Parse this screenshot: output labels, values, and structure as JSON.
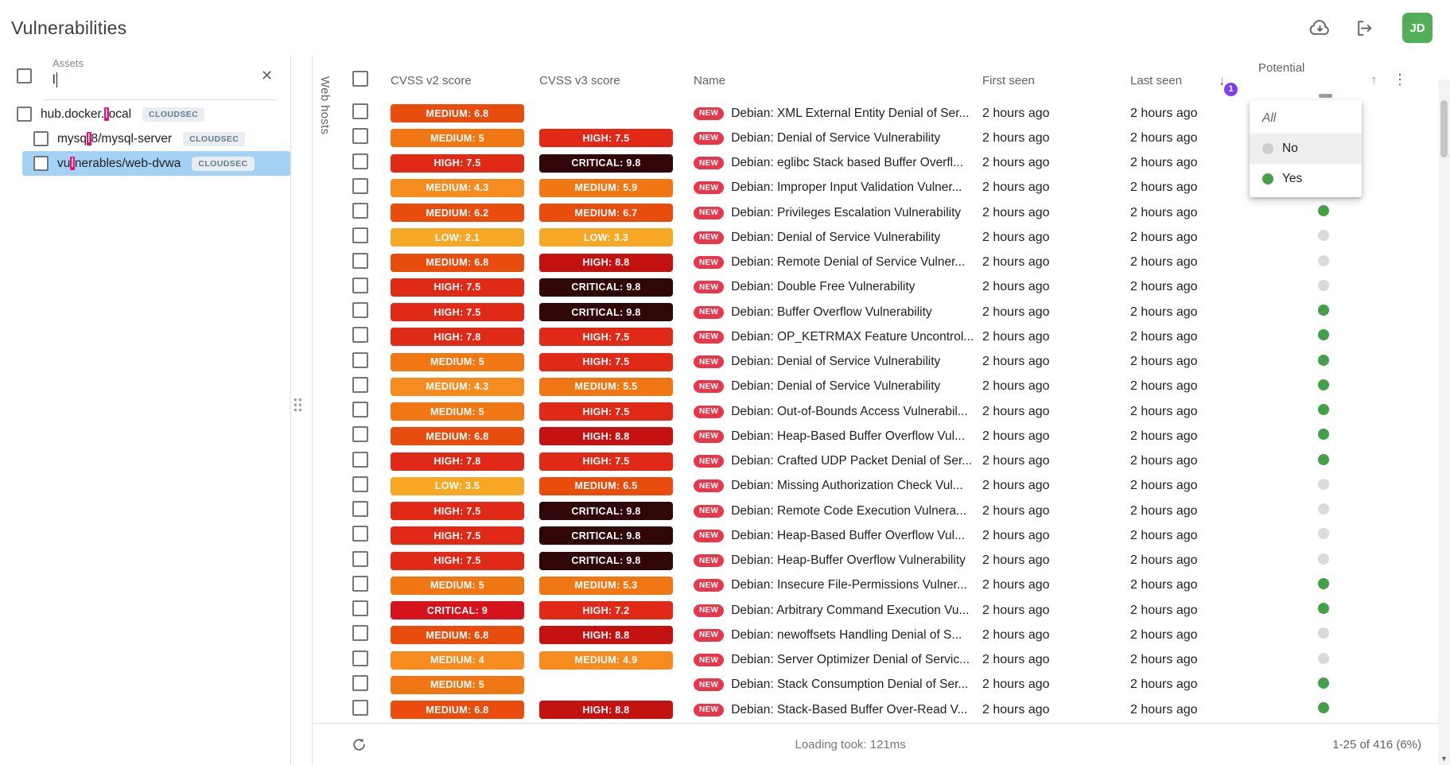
{
  "header": {
    "title": "Vulnerabilities",
    "avatar": "JD"
  },
  "icons": {
    "clear": "✕",
    "sort_desc": "↓",
    "sort_asc": "↑",
    "more": "⋮",
    "scroll_down": "▼"
  },
  "sidebar": {
    "search_label": "Assets",
    "search_value": "l",
    "items": [
      {
        "prefix": "hub.docker.",
        "match": "l",
        "suffix": "ocal",
        "badge": "CLOUDSEC",
        "indent": 0,
        "selected": false
      },
      {
        "prefix": "mysq",
        "match": "l",
        "suffix": "8/mysql-server",
        "badge": "CLOUDSEC",
        "indent": 1,
        "selected": false
      },
      {
        "prefix": "vu",
        "match": "l",
        "suffix": "nerables/web-dvwa",
        "badge": "CLOUDSEC",
        "indent": 1,
        "selected": true
      }
    ]
  },
  "pane_label": "Web hosts",
  "table": {
    "columns": [
      "CVSS v2 score",
      "CVSS v3 score",
      "Name",
      "First seen",
      "Last seen",
      "Potential"
    ],
    "sort": {
      "column": "Last seen",
      "direction": "desc",
      "badge": "1"
    },
    "new_badge": "NEW",
    "rows": [
      {
        "v2": {
          "label": "MEDIUM",
          "score": 6.8
        },
        "v3": null,
        "name": "Debian: XML External Entity Denial of Ser...",
        "first": "2 hours ago",
        "last": "2 hours ago",
        "potential": null
      },
      {
        "v2": {
          "label": "MEDIUM",
          "score": 5
        },
        "v3": {
          "label": "HIGH",
          "score": 7.5
        },
        "name": "Debian: Denial of Service Vulnerability",
        "first": "2 hours ago",
        "last": "2 hours ago",
        "potential": null
      },
      {
        "v2": {
          "label": "HIGH",
          "score": 7.5
        },
        "v3": {
          "label": "CRITICAL",
          "score": 9.8
        },
        "name": "Debian: eglibc Stack based Buffer Overfl...",
        "first": "2 hours ago",
        "last": "2 hours ago",
        "potential": null
      },
      {
        "v2": {
          "label": "MEDIUM",
          "score": 4.3
        },
        "v3": {
          "label": "MEDIUM",
          "score": 5.9
        },
        "name": "Debian: Improper Input Validation Vulner...",
        "first": "2 hours ago",
        "last": "2 hours ago",
        "potential": null
      },
      {
        "v2": {
          "label": "MEDIUM",
          "score": 6.2
        },
        "v3": {
          "label": "MEDIUM",
          "score": 6.7
        },
        "name": "Debian: Privileges Escalation Vulnerability",
        "first": "2 hours ago",
        "last": "2 hours ago",
        "potential": "green"
      },
      {
        "v2": {
          "label": "LOW",
          "score": 2.1
        },
        "v3": {
          "label": "LOW",
          "score": 3.3
        },
        "name": "Debian: Denial of Service Vulnerability",
        "first": "2 hours ago",
        "last": "2 hours ago",
        "potential": "gray"
      },
      {
        "v2": {
          "label": "MEDIUM",
          "score": 6.8
        },
        "v3": {
          "label": "HIGH",
          "score": 8.8
        },
        "name": "Debian: Remote Denial of Service Vulner...",
        "first": "2 hours ago",
        "last": "2 hours ago",
        "potential": "gray"
      },
      {
        "v2": {
          "label": "HIGH",
          "score": 7.5
        },
        "v3": {
          "label": "CRITICAL",
          "score": 9.8
        },
        "name": "Debian: Double Free Vulnerability",
        "first": "2 hours ago",
        "last": "2 hours ago",
        "potential": "gray"
      },
      {
        "v2": {
          "label": "HIGH",
          "score": 7.5
        },
        "v3": {
          "label": "CRITICAL",
          "score": 9.8
        },
        "name": "Debian: Buffer Overflow Vulnerability",
        "first": "2 hours ago",
        "last": "2 hours ago",
        "potential": "green"
      },
      {
        "v2": {
          "label": "HIGH",
          "score": 7.8
        },
        "v3": {
          "label": "HIGH",
          "score": 7.5
        },
        "name": "Debian: OP_KETRMAX Feature Uncontrol...",
        "first": "2 hours ago",
        "last": "2 hours ago",
        "potential": "green"
      },
      {
        "v2": {
          "label": "MEDIUM",
          "score": 5
        },
        "v3": {
          "label": "HIGH",
          "score": 7.5
        },
        "name": "Debian: Denial of Service Vulnerability",
        "first": "2 hours ago",
        "last": "2 hours ago",
        "potential": "green"
      },
      {
        "v2": {
          "label": "MEDIUM",
          "score": 4.3
        },
        "v3": {
          "label": "MEDIUM",
          "score": 5.5
        },
        "name": "Debian: Denial of Service Vulnerability",
        "first": "2 hours ago",
        "last": "2 hours ago",
        "potential": "green"
      },
      {
        "v2": {
          "label": "MEDIUM",
          "score": 5
        },
        "v3": {
          "label": "HIGH",
          "score": 7.5
        },
        "name": "Debian: Out-of-Bounds Access Vulnerabil...",
        "first": "2 hours ago",
        "last": "2 hours ago",
        "potential": "green"
      },
      {
        "v2": {
          "label": "MEDIUM",
          "score": 6.8
        },
        "v3": {
          "label": "HIGH",
          "score": 8.8
        },
        "name": "Debian: Heap-Based Buffer Overflow Vul...",
        "first": "2 hours ago",
        "last": "2 hours ago",
        "potential": "green"
      },
      {
        "v2": {
          "label": "HIGH",
          "score": 7.8
        },
        "v3": {
          "label": "HIGH",
          "score": 7.5
        },
        "name": "Debian: Crafted UDP Packet Denial of Ser...",
        "first": "2 hours ago",
        "last": "2 hours ago",
        "potential": "green"
      },
      {
        "v2": {
          "label": "LOW",
          "score": 3.5
        },
        "v3": {
          "label": "MEDIUM",
          "score": 6.5
        },
        "name": "Debian: Missing Authorization Check Vul...",
        "first": "2 hours ago",
        "last": "2 hours ago",
        "potential": "gray"
      },
      {
        "v2": {
          "label": "HIGH",
          "score": 7.5
        },
        "v3": {
          "label": "CRITICAL",
          "score": 9.8
        },
        "name": "Debian: Remote Code Execution Vulnera...",
        "first": "2 hours ago",
        "last": "2 hours ago",
        "potential": "gray"
      },
      {
        "v2": {
          "label": "HIGH",
          "score": 7.5
        },
        "v3": {
          "label": "CRITICAL",
          "score": 9.8
        },
        "name": "Debian: Heap-Based Buffer Overflow Vul...",
        "first": "2 hours ago",
        "last": "2 hours ago",
        "potential": "gray"
      },
      {
        "v2": {
          "label": "HIGH",
          "score": 7.5
        },
        "v3": {
          "label": "CRITICAL",
          "score": 9.8
        },
        "name": "Debian: Heap-Buffer Overflow Vulnerability",
        "first": "2 hours ago",
        "last": "2 hours ago",
        "potential": "gray"
      },
      {
        "v2": {
          "label": "MEDIUM",
          "score": 5
        },
        "v3": {
          "label": "MEDIUM",
          "score": 5.3
        },
        "name": "Debian: Insecure File-Permissions Vulner...",
        "first": "2 hours ago",
        "last": "2 hours ago",
        "potential": "green"
      },
      {
        "v2": {
          "label": "CRITICAL",
          "score": 9
        },
        "v3": {
          "label": "HIGH",
          "score": 7.2
        },
        "name": "Debian: Arbitrary Command Execution Vu...",
        "first": "2 hours ago",
        "last": "2 hours ago",
        "potential": "green"
      },
      {
        "v2": {
          "label": "MEDIUM",
          "score": 6.8
        },
        "v3": {
          "label": "HIGH",
          "score": 8.8
        },
        "name": "Debian: newoffsets Handling Denial of S...",
        "first": "2 hours ago",
        "last": "2 hours ago",
        "potential": "gray"
      },
      {
        "v2": {
          "label": "MEDIUM",
          "score": 4
        },
        "v3": {
          "label": "MEDIUM",
          "score": 4.9
        },
        "name": "Debian: Server Optimizer Denial of Servic...",
        "first": "2 hours ago",
        "last": "2 hours ago",
        "potential": "gray"
      },
      {
        "v2": {
          "label": "MEDIUM",
          "score": 5
        },
        "v3": null,
        "name": "Debian: Stack Consumption Denial of Ser...",
        "first": "2 hours ago",
        "last": "2 hours ago",
        "potential": "green"
      },
      {
        "v2": {
          "label": "MEDIUM",
          "score": 6.8
        },
        "v3": {
          "label": "HIGH",
          "score": 8.8
        },
        "name": "Debian: Stack-Based Buffer Over-Read V...",
        "first": "2 hours ago",
        "last": "2 hours ago",
        "potential": "green"
      }
    ]
  },
  "potential_dropdown": {
    "options": [
      {
        "label": "All",
        "style": "italic",
        "dot": null,
        "highlighted": false
      },
      {
        "label": "No",
        "style": "normal",
        "dot": "gray",
        "highlighted": true
      },
      {
        "label": "Yes",
        "style": "normal",
        "dot": "green",
        "highlighted": false
      }
    ]
  },
  "footer": {
    "loading_text": "Loading took: 121ms",
    "pagination": "1-25 of 416 (6%)"
  },
  "colors": {
    "low": "#F6A723",
    "medium4": "#F68B1F",
    "medium5": "#F07713",
    "medium6": "#E84D0E",
    "high7": "#E02A17",
    "high8": "#C41210",
    "critical9": "#D6121C",
    "critical98": "#300606",
    "green_dot": "#43A047",
    "gray_dot": "#DADADA",
    "accent_purple": "#7B3FF2",
    "selected_row": "#A3D2F5",
    "match_highlight": "#EC1075",
    "new_badge": "#E8374A",
    "avatar_bg": "#53AE58"
  }
}
